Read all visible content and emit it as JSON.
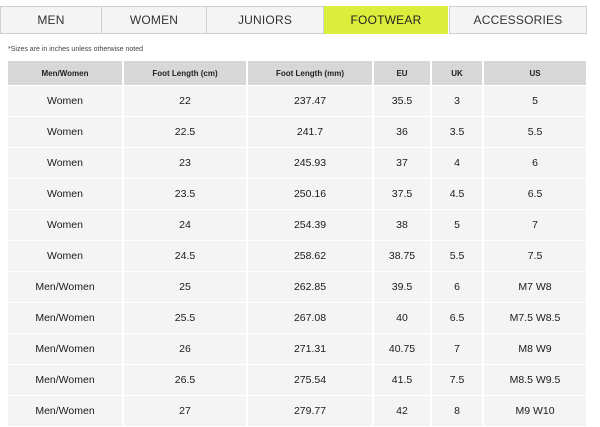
{
  "tabs": [
    {
      "label": "MEN",
      "active": false
    },
    {
      "label": "WOMEN",
      "active": false
    },
    {
      "label": "JUNIORS",
      "active": false
    },
    {
      "label": "FOOTWEAR",
      "active": true
    },
    {
      "label": "ACCESSORIES",
      "active": false
    }
  ],
  "note": "*Sizes are in inches unless otherwise noted",
  "table": {
    "headers": [
      "Men/Women",
      "Foot Length (cm)",
      "Foot Length (mm)",
      "EU",
      "UK",
      "US"
    ],
    "rows": [
      [
        "Women",
        "22",
        "237.47",
        "35.5",
        "3",
        "5"
      ],
      [
        "Women",
        "22.5",
        "241.7",
        "36",
        "3.5",
        "5.5"
      ],
      [
        "Women",
        "23",
        "245.93",
        "37",
        "4",
        "6"
      ],
      [
        "Women",
        "23.5",
        "250.16",
        "37.5",
        "4.5",
        "6.5"
      ],
      [
        "Women",
        "24",
        "254.39",
        "38",
        "5",
        "7"
      ],
      [
        "Women",
        "24.5",
        "258.62",
        "38.75",
        "5.5",
        "7.5"
      ],
      [
        "Men/Women",
        "25",
        "262.85",
        "39.5",
        "6",
        "M7 W8"
      ],
      [
        "Men/Women",
        "25.5",
        "267.08",
        "40",
        "6.5",
        "M7.5 W8.5"
      ],
      [
        "Men/Women",
        "26",
        "271.31",
        "40.75",
        "7",
        "M8 W9"
      ],
      [
        "Men/Women",
        "26.5",
        "275.54",
        "41.5",
        "7.5",
        "M8.5 W9.5"
      ],
      [
        "Men/Women",
        "27",
        "279.77",
        "42",
        "8",
        "M9 W10"
      ]
    ]
  },
  "colors": {
    "active_tab": "#dcee3c",
    "tab_bg": "#f4f4f4",
    "header_bg": "#d7d7d7",
    "row_bg": "#f4f4f4"
  }
}
